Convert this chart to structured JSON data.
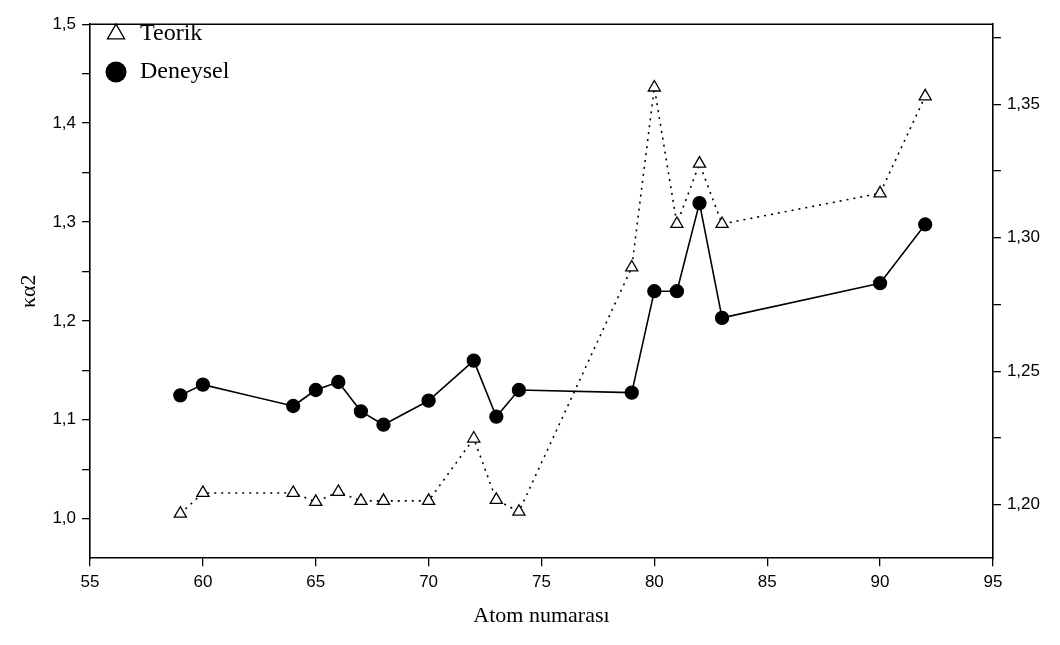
{
  "chart_data": {
    "type": "line",
    "xlabel": "Atom numarası",
    "ylabel": "κα2",
    "x": [
      59,
      60,
      64,
      65,
      66,
      67,
      68,
      70,
      72,
      73,
      74,
      79,
      80,
      81,
      82,
      83,
      90,
      92
    ],
    "series": [
      {
        "name": "Teorik",
        "color": "#000000",
        "marker": "triangle",
        "line_style": "dotted",
        "values": [
          1.005,
          1.026,
          1.026,
          1.017,
          1.027,
          1.018,
          1.018,
          1.018,
          1.081,
          1.019,
          1.007,
          1.254,
          1.436,
          1.298,
          1.359,
          1.298,
          1.329,
          1.427
        ]
      },
      {
        "name": "Deneysel",
        "color": "#000000",
        "marker": "circle",
        "line_style": "solid",
        "axis": "y2",
        "values": [
          1.241,
          1.245,
          1.237,
          1.243,
          1.246,
          1.235,
          1.23,
          1.239,
          1.254,
          1.233,
          1.243,
          1.242,
          1.28,
          1.28,
          1.313,
          1.27,
          1.283,
          1.305
        ]
      }
    ],
    "xlim": [
      55,
      95
    ],
    "xticks": [
      55,
      60,
      65,
      70,
      75,
      80,
      85,
      90,
      95
    ],
    "ylim": [
      0.96,
      1.5
    ],
    "yticks": [
      {
        "value": 1.0,
        "label": "1,0"
      },
      {
        "value": 1.05,
        "label": null
      },
      {
        "value": 1.1,
        "label": "1,1"
      },
      {
        "value": 1.15,
        "label": null
      },
      {
        "value": 1.2,
        "label": "1,2"
      },
      {
        "value": 1.25,
        "label": null
      },
      {
        "value": 1.3,
        "label": "1,3"
      },
      {
        "value": 1.35,
        "label": null
      },
      {
        "value": 1.4,
        "label": "1,4"
      },
      {
        "value": 1.45,
        "label": null
      },
      {
        "value": 1.5,
        "label": "1,5"
      }
    ],
    "y2lim": [
      1.18,
      1.38
    ],
    "y2ticks": [
      {
        "value": 1.2,
        "label": "1,20"
      },
      {
        "value": 1.225,
        "label": null
      },
      {
        "value": 1.25,
        "label": "1,25"
      },
      {
        "value": 1.275,
        "label": null
      },
      {
        "value": 1.3,
        "label": "1,30"
      },
      {
        "value": 1.325,
        "label": null
      },
      {
        "value": 1.35,
        "label": "1,35"
      },
      {
        "value": 1.375,
        "label": null
      }
    ],
    "grid": false,
    "legend": "top left"
  }
}
